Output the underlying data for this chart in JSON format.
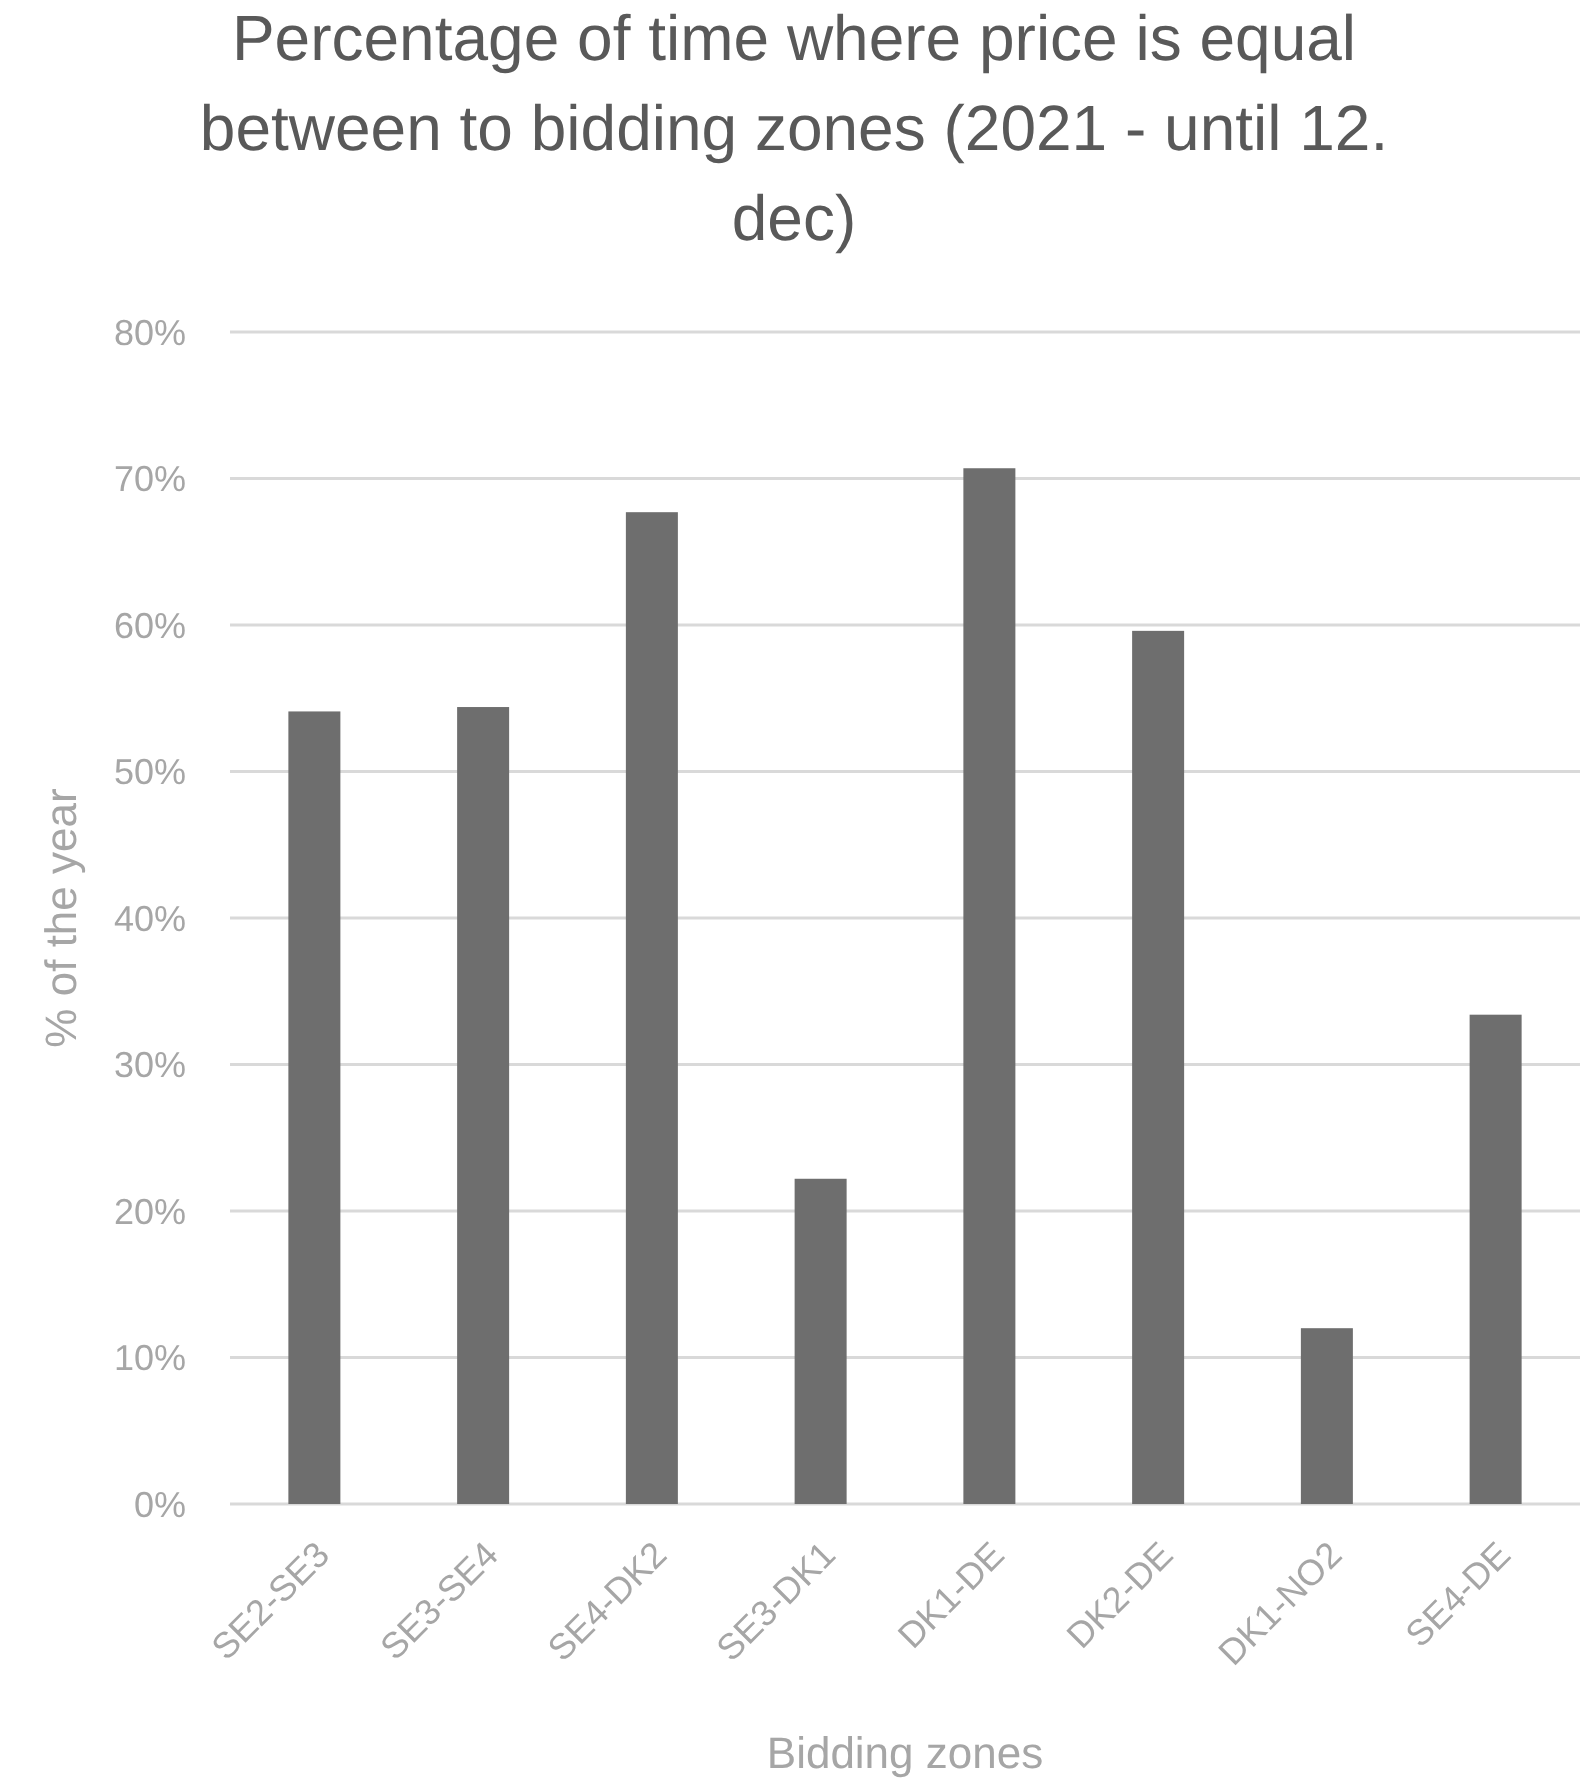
{
  "chart_data": {
    "type": "bar",
    "title": "Percentage of time where price is equal between to bidding zones (2021 - until 12. dec)",
    "xlabel": "Bidding zones",
    "ylabel": "% of the year",
    "categories": [
      "SE2-SE3",
      "SE3-SE4",
      "SE4-DK2",
      "SE3-DK1",
      "DK1-DE",
      "DK2-DE",
      "DK1-NO2",
      "SE4-DE"
    ],
    "values": [
      54.1,
      54.4,
      67.7,
      22.2,
      70.7,
      59.6,
      12.0,
      33.4
    ],
    "color": "#6e6e6e",
    "ylim": [
      0,
      80
    ],
    "yticks": [
      {
        "value": 0,
        "label": "0%"
      },
      {
        "value": 10,
        "label": "10%"
      },
      {
        "value": 20,
        "label": "20%"
      },
      {
        "value": 30,
        "label": "30%"
      },
      {
        "value": 40,
        "label": "40%"
      },
      {
        "value": 50,
        "label": "50%"
      },
      {
        "value": 60,
        "label": "60%"
      },
      {
        "value": 70,
        "label": "70%"
      },
      {
        "value": 80,
        "label": "80%"
      }
    ],
    "grid": "y"
  }
}
